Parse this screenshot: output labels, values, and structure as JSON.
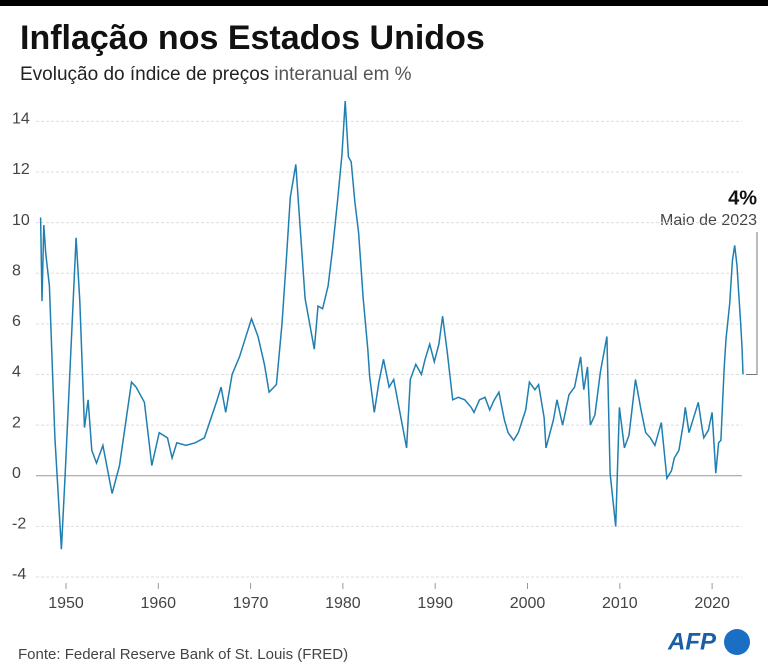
{
  "chart_data": {
    "type": "line",
    "title": "Inflação nos Estados Unidos",
    "subtitle": "Evolução do índice de preços",
    "subtitle_unit": "interanual em %",
    "source": "Fonte: Federal Reserve Bank of St. Louis (FRED)",
    "logo": "AFP",
    "annotation": {
      "value_label": "4%",
      "label": "Maio de 2023"
    },
    "xlim": [
      1947,
      2023.4
    ],
    "xticks": [
      1950,
      1960,
      1970,
      1980,
      1990,
      2000,
      2010,
      2020
    ],
    "ylim": [
      -4,
      15
    ],
    "yticks": [
      -4,
      -2,
      0,
      2,
      4,
      6,
      8,
      10,
      12,
      14
    ],
    "grid": true,
    "series": [
      {
        "name": "Inflação",
        "color": "#1f7fb0",
        "x": [
          1947.25,
          1947.4,
          1947.6,
          1947.8,
          1948.2,
          1948.8,
          1949.5,
          1949.9,
          1951.1,
          1951.5,
          1952.0,
          1952.4,
          1952.8,
          1953.3,
          1954.0,
          1955.0,
          1955.8,
          1957.1,
          1957.6,
          1958.5,
          1959.3,
          1960.1,
          1961.0,
          1961.5,
          1962.0,
          1963.0,
          1964.0,
          1965.0,
          1966.3,
          1966.8,
          1967.3,
          1968.0,
          1968.8,
          1970.1,
          1970.8,
          1971.5,
          1972.0,
          1972.8,
          1973.4,
          1973.9,
          1974.3,
          1974.9,
          1975.5,
          1975.9,
          1976.9,
          1977.3,
          1977.8,
          1978.4,
          1978.9,
          1979.4,
          1979.9,
          1980.25,
          1980.6,
          1980.9,
          1981.3,
          1981.7,
          1982.2,
          1982.7,
          1982.9,
          1983.4,
          1983.9,
          1984.4,
          1985.0,
          1985.5,
          1986.9,
          1987.3,
          1987.9,
          1988.5,
          1988.9,
          1989.4,
          1989.9,
          1990.4,
          1990.8,
          1991.3,
          1991.9,
          1992.5,
          1993.2,
          1993.9,
          1994.2,
          1994.8,
          1995.4,
          1995.9,
          1996.4,
          1996.9,
          1997.5,
          1997.9,
          1998.5,
          1999.0,
          1999.8,
          2000.2,
          2000.8,
          2001.2,
          2001.8,
          2002.0,
          2002.8,
          2003.2,
          2003.8,
          2004.5,
          2005.1,
          2005.75,
          2006.1,
          2006.5,
          2006.8,
          2007.3,
          2007.9,
          2008.6,
          2008.95,
          2009.55,
          2009.95,
          2010.5,
          2011.0,
          2011.7,
          2012.3,
          2012.8,
          2013.3,
          2013.8,
          2014.5,
          2015.1,
          2015.6,
          2015.9,
          2016.4,
          2016.9,
          2017.1,
          2017.5,
          2018.5,
          2018.9,
          2019.1,
          2019.6,
          2020.0,
          2020.4,
          2020.7,
          2020.95,
          2021.3,
          2021.5,
          2021.9,
          2022.2,
          2022.45,
          2022.7,
          2022.9,
          2023.1,
          2023.25,
          2023.35
        ],
        "values": [
          10.2,
          6.9,
          9.9,
          8.8,
          7.5,
          1.5,
          -2.9,
          0.0,
          9.4,
          6.9,
          1.9,
          3.0,
          1.0,
          0.5,
          1.2,
          -0.7,
          0.4,
          3.7,
          3.5,
          2.9,
          0.4,
          1.7,
          1.5,
          0.7,
          1.3,
          1.2,
          1.3,
          1.5,
          2.9,
          3.5,
          2.5,
          4.0,
          4.7,
          6.2,
          5.5,
          4.4,
          3.3,
          3.6,
          6.0,
          8.7,
          11.0,
          12.3,
          9.1,
          7.0,
          5.0,
          6.7,
          6.6,
          7.5,
          9.0,
          10.8,
          12.7,
          14.8,
          12.6,
          12.4,
          10.8,
          9.6,
          7.0,
          5.0,
          3.9,
          2.5,
          3.7,
          4.6,
          3.5,
          3.8,
          1.1,
          3.8,
          4.4,
          4.0,
          4.6,
          5.2,
          4.5,
          5.2,
          6.3,
          4.9,
          3.0,
          3.1,
          3.0,
          2.7,
          2.5,
          3.0,
          3.1,
          2.6,
          3.0,
          3.3,
          2.2,
          1.7,
          1.4,
          1.7,
          2.6,
          3.7,
          3.4,
          3.6,
          2.3,
          1.1,
          2.2,
          3.0,
          2.0,
          3.2,
          3.5,
          4.7,
          3.4,
          4.3,
          2.0,
          2.4,
          4.1,
          5.5,
          0.1,
          -2.0,
          2.7,
          1.1,
          1.6,
          3.8,
          2.6,
          1.7,
          1.5,
          1.2,
          2.1,
          -0.1,
          0.2,
          0.7,
          1.0,
          2.1,
          2.7,
          1.7,
          2.9,
          1.9,
          1.5,
          1.8,
          2.5,
          0.1,
          1.3,
          1.4,
          4.2,
          5.4,
          6.8,
          8.5,
          9.1,
          8.3,
          7.1,
          6.0,
          5.0,
          4.0
        ]
      }
    ]
  }
}
